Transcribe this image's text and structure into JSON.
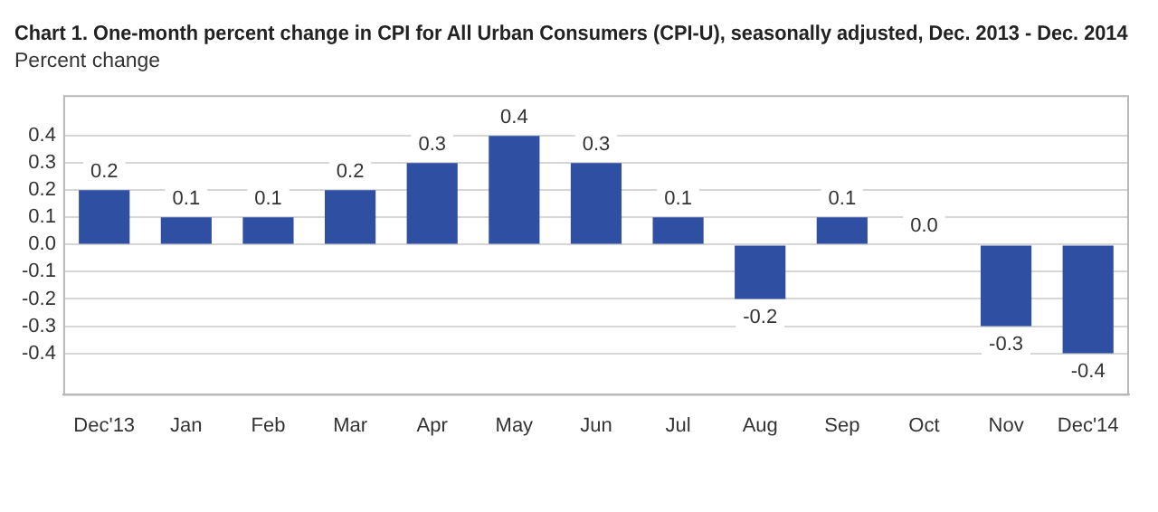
{
  "chart_data": {
    "type": "bar",
    "title": "Chart 1. One-month percent change in CPI for All Urban Consumers (CPI-U), seasonally adjusted, Dec. 2013 - Dec. 2014",
    "ylabel": "Percent change",
    "categories": [
      "Dec'13",
      "Jan",
      "Feb",
      "Mar",
      "Apr",
      "May",
      "Jun",
      "Jul",
      "Aug",
      "Sep",
      "Oct",
      "Nov",
      "Dec'14"
    ],
    "values": [
      0.2,
      0.1,
      0.1,
      0.2,
      0.3,
      0.4,
      0.3,
      0.1,
      -0.2,
      0.1,
      0.0,
      -0.3,
      -0.4
    ],
    "value_labels": [
      "0.2",
      "0.1",
      "0.1",
      "0.2",
      "0.3",
      "0.4",
      "0.3",
      "0.1",
      "-0.2",
      "0.1",
      "0.0",
      "-0.3",
      "-0.4"
    ],
    "color": "#2f4fa3",
    "ylim": [
      -0.55,
      0.55
    ],
    "yticks": [
      0.4,
      0.3,
      0.2,
      0.1,
      {
        "value": 0,
        "label": "0.0"
      },
      -0.1,
      -0.2,
      -0.3,
      -0.4
    ],
    "grid": "y"
  }
}
